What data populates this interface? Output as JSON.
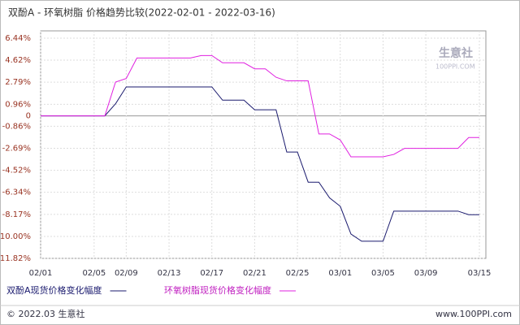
{
  "chart_data": {
    "type": "line",
    "title": "双酚A - 环氧树脂 价格趋势比较(2022-02-01 - 2022-03-16)",
    "watermark": "生意社",
    "watermark_sub": "100PPI.COM",
    "categories": [
      "02/01",
      null,
      null,
      null,
      null,
      "02/05",
      null,
      null,
      "02/09",
      null,
      null,
      null,
      "02/13",
      null,
      null,
      null,
      "02/17",
      null,
      null,
      null,
      "02/21",
      null,
      null,
      null,
      "02/25",
      null,
      null,
      null,
      "03/01",
      null,
      null,
      null,
      "03/05",
      null,
      null,
      null,
      "03/09",
      null,
      null,
      null,
      null,
      "03/15"
    ],
    "series": [
      {
        "name": "双酚A现货价格变化幅度",
        "color": "#1a1a6e",
        "values": [
          0,
          0,
          0,
          0,
          0,
          0,
          0,
          1.0,
          2.4,
          2.4,
          2.4,
          2.4,
          2.4,
          2.4,
          2.4,
          2.4,
          2.4,
          1.3,
          1.3,
          1.3,
          0.5,
          0.5,
          0.5,
          -3.0,
          -3.0,
          -5.5,
          -5.5,
          -6.8,
          -7.5,
          -9.8,
          -10.4,
          -10.4,
          -10.4,
          -7.9,
          -7.9,
          -7.9,
          -7.9,
          -7.9,
          -7.9,
          -7.9,
          -8.2,
          -8.2
        ]
      },
      {
        "name": "环氧树脂现货价格变化幅度",
        "color": "#e020e0",
        "values": [
          0,
          0,
          0,
          0,
          0,
          0,
          0,
          2.8,
          3.1,
          4.8,
          4.8,
          4.8,
          4.8,
          4.8,
          4.8,
          5.0,
          5.0,
          4.4,
          4.4,
          4.4,
          3.9,
          3.9,
          3.2,
          2.9,
          2.9,
          2.9,
          -1.5,
          -1.5,
          -2.0,
          -3.4,
          -3.4,
          -3.4,
          -3.4,
          -3.2,
          -2.7,
          -2.7,
          -2.7,
          -2.7,
          -2.7,
          -2.7,
          -1.8,
          -1.8
        ]
      }
    ],
    "ylim": [
      -11.82,
      6.44
    ],
    "yticks": [
      {
        "value": 6.44,
        "label": "6.44%"
      },
      {
        "value": 4.62,
        "label": "4.62%"
      },
      {
        "value": 2.79,
        "label": "2.79%"
      },
      {
        "value": 0.96,
        "label": "0.96%"
      },
      0,
      {
        "value": -0.86,
        "label": "-0.86%"
      },
      {
        "value": -2.69,
        "label": "-2.69%"
      },
      {
        "value": -4.52,
        "label": "-4.52%"
      },
      {
        "value": -6.34,
        "label": "-6.34%"
      },
      {
        "value": -8.17,
        "label": "-8.17%"
      },
      {
        "value": -10.0,
        "label": "-10.00%"
      },
      {
        "value": -11.82,
        "label": "-11.82%"
      }
    ],
    "grid": true
  },
  "footer": {
    "left": "© 2022.03 生意社",
    "right": "www.100PPI.com"
  }
}
